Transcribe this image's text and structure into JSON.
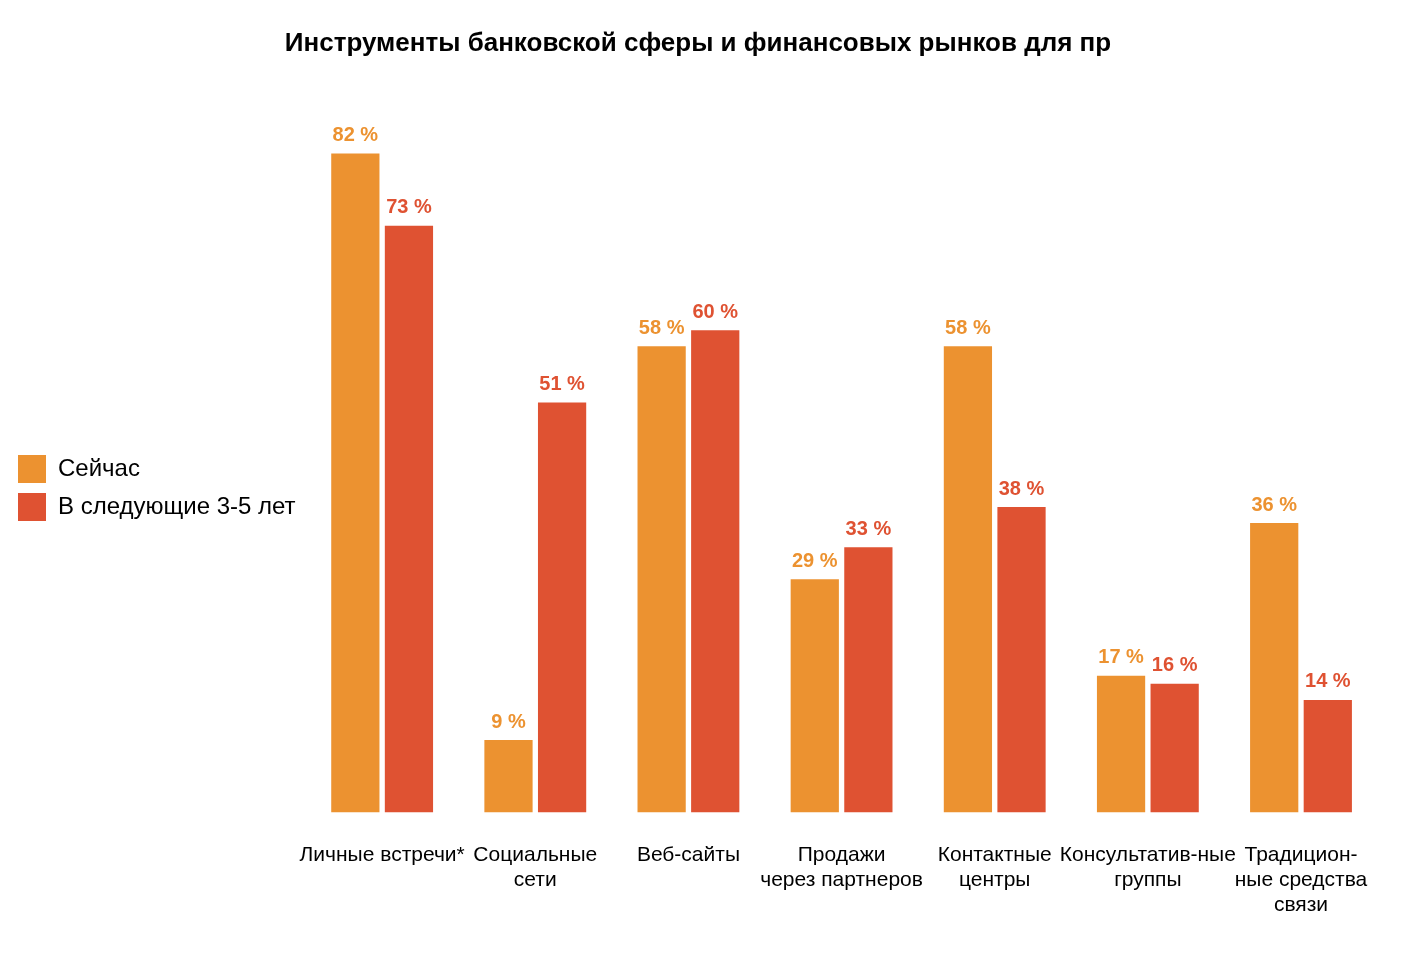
{
  "chart_data": {
    "type": "bar",
    "title": "Инструменты банковской сферы и финансовых рынков для пр",
    "categories": [
      "Личные встречи*",
      "Социальные\nсети",
      "Веб-сайты",
      "Продажи\nчерез партнеров",
      "Контактные\nцентры",
      "Консультатив-ные\nгруппы",
      "Традицион-\nные средства\nсвязи"
    ],
    "series": [
      {
        "name": "Сейчас",
        "color": "#ec9230",
        "values": [
          82,
          9,
          58,
          29,
          58,
          17,
          36
        ],
        "value_labels": [
          "82 %",
          "9 %",
          "58 %",
          "29 %",
          "58 %",
          "17 %",
          "36 %"
        ]
      },
      {
        "name": "В следующие 3-5 лет",
        "color": "#df5232",
        "values": [
          73,
          51,
          60,
          33,
          38,
          16,
          14
        ],
        "value_labels": [
          "73 %",
          "51 %",
          "60 %",
          "33 %",
          "38 %",
          "16 %",
          "14 %"
        ]
      }
    ],
    "legend": "left",
    "grid": false
  }
}
